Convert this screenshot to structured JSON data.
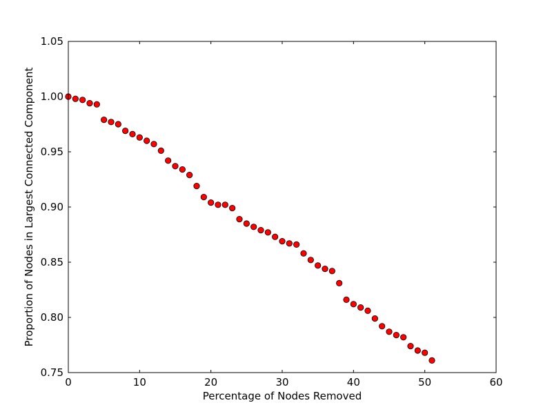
{
  "chart_data": {
    "type": "scatter",
    "title": "",
    "xlabel": "Percentage of Nodes Removed",
    "ylabel": "Proportion of Nodes in Largest Connected Component",
    "xlim": [
      0,
      60
    ],
    "ylim": [
      0.75,
      1.05
    ],
    "xticks": [
      0,
      10,
      20,
      30,
      40,
      50,
      60
    ],
    "xtick_labels": [
      "0",
      "10",
      "20",
      "30",
      "40",
      "50",
      "60"
    ],
    "yticks": [
      0.75,
      0.8,
      0.85,
      0.9,
      0.95,
      1.0,
      1.05
    ],
    "ytick_labels": [
      "0.75",
      "0.80",
      "0.85",
      "0.90",
      "0.95",
      "1.00",
      "1.05"
    ],
    "grid": false,
    "marker_color": "#ff0000",
    "marker_edge_color": "#000000",
    "series": [
      {
        "x": [
          0,
          1,
          2,
          3,
          4,
          5,
          6,
          7,
          8,
          9,
          10,
          11,
          12,
          13,
          14,
          15,
          16,
          17,
          18,
          19,
          20,
          21,
          22,
          23,
          24,
          25,
          26,
          27,
          28,
          29,
          30,
          31,
          32,
          33,
          34,
          35,
          36,
          37,
          38,
          39,
          40,
          41,
          42,
          43,
          44,
          45,
          46,
          47,
          48,
          49,
          50,
          51
        ],
        "y": [
          1.0,
          0.998,
          0.997,
          0.994,
          0.993,
          0.979,
          0.977,
          0.975,
          0.969,
          0.966,
          0.963,
          0.96,
          0.957,
          0.951,
          0.942,
          0.937,
          0.934,
          0.929,
          0.919,
          0.909,
          0.904,
          0.902,
          0.902,
          0.899,
          0.889,
          0.885,
          0.882,
          0.879,
          0.877,
          0.873,
          0.869,
          0.867,
          0.866,
          0.858,
          0.852,
          0.847,
          0.844,
          0.842,
          0.831,
          0.816,
          0.812,
          0.809,
          0.806,
          0.799,
          0.792,
          0.787,
          0.784,
          0.782,
          0.774,
          0.77,
          0.768,
          0.761
        ]
      }
    ]
  }
}
